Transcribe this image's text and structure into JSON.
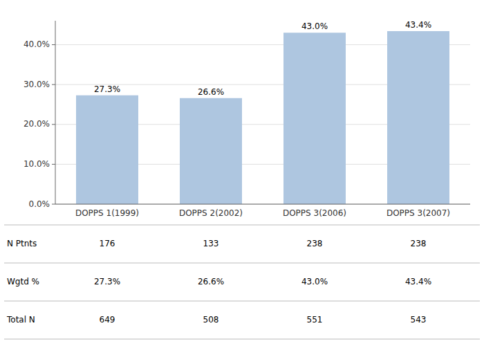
{
  "chart_data": {
    "type": "bar",
    "categories": [
      "DOPPS 1(1999)",
      "DOPPS 2(2002)",
      "DOPPS 3(2006)",
      "DOPPS 3(2007)"
    ],
    "values": [
      27.3,
      26.6,
      43.0,
      43.4
    ],
    "value_labels": [
      "27.3%",
      "26.6%",
      "43.0%",
      "43.4%"
    ],
    "data_labels": true,
    "color": "#aec6e0",
    "ylim": [
      0,
      46
    ],
    "yticks": [
      {
        "value": 0,
        "label": "0.0%"
      },
      {
        "value": 10,
        "label": "10.0%"
      },
      {
        "value": 20,
        "label": "20.0%"
      },
      {
        "value": 30,
        "label": "30.0%"
      },
      {
        "value": 40,
        "label": "40.0%"
      }
    ],
    "grid": true,
    "table": {
      "row_labels": [
        "N Ptnts",
        "Wgtd %",
        "Total N"
      ],
      "rows": [
        [
          "176",
          "133",
          "238",
          "238"
        ],
        [
          "27.3%",
          "26.6%",
          "43.0%",
          "43.4%"
        ],
        [
          "649",
          "508",
          "551",
          "543"
        ]
      ]
    }
  }
}
